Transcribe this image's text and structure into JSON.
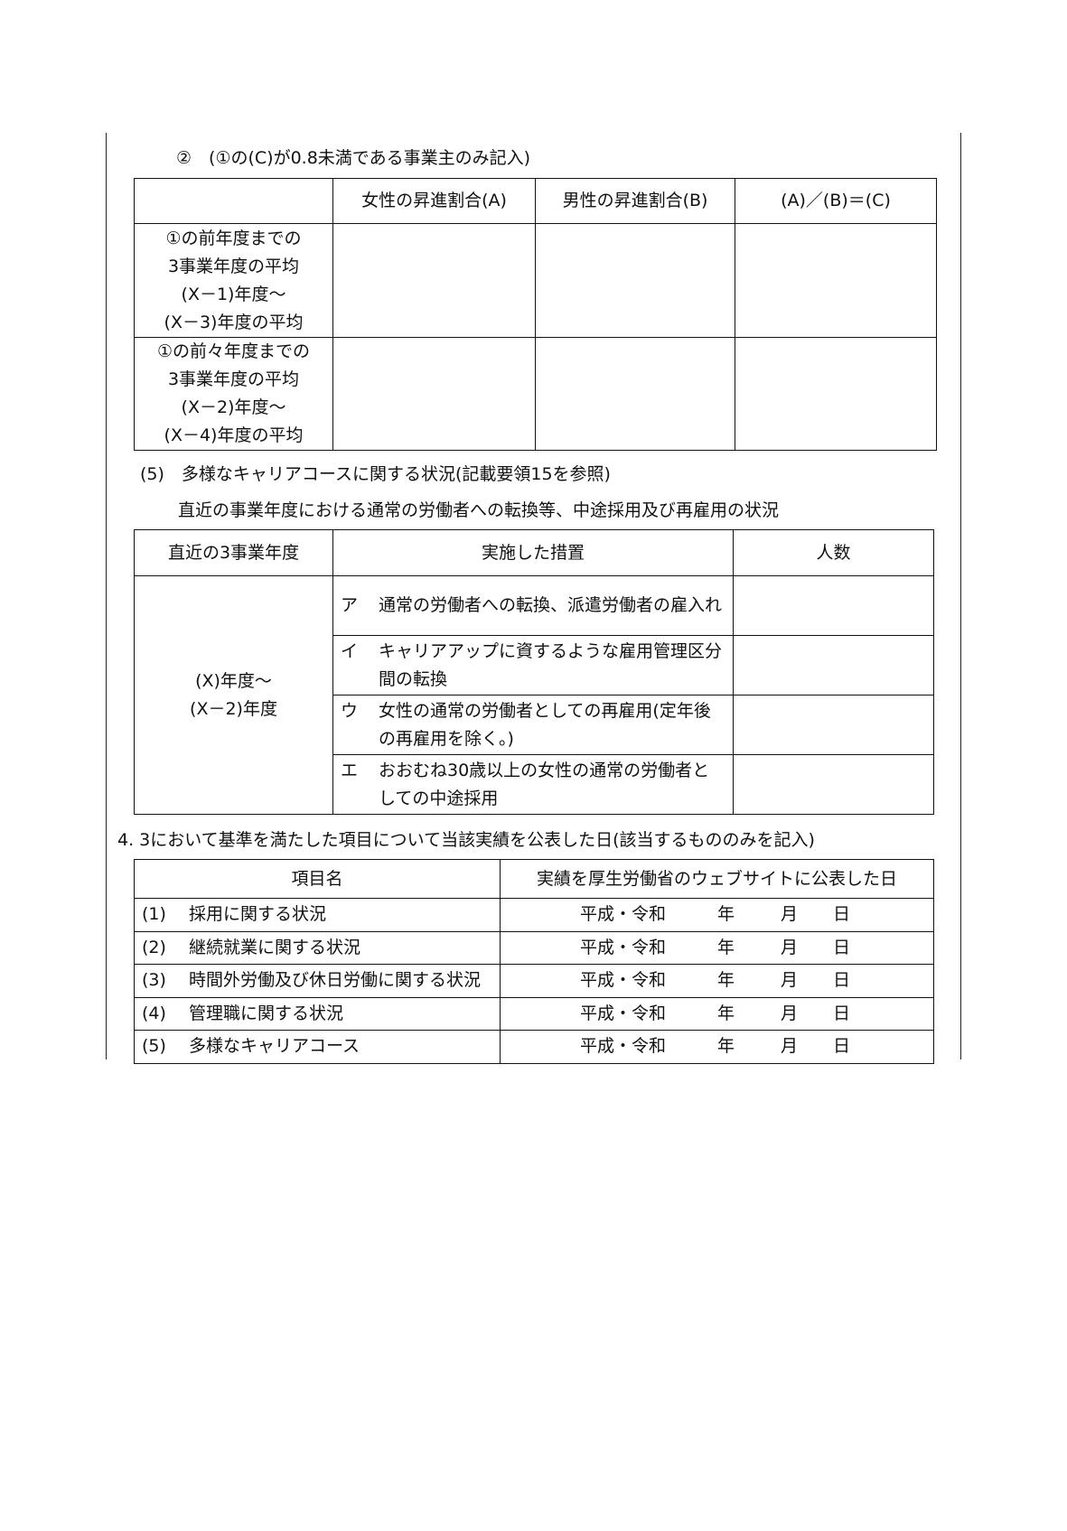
{
  "section_promotion": {
    "heading": "②　(①の(C)が0.8未満である事業主のみ記入)",
    "headers": [
      "",
      "女性の昇進割合(A)",
      "男性の昇進割合(B)",
      "(A)／(B)＝(C)"
    ],
    "rows": [
      {
        "label": [
          "①の前年度までの",
          "3事業年度の平均",
          "(X－1)年度～",
          "(X－3)年度の平均"
        ],
        "values": [
          "",
          "",
          ""
        ]
      },
      {
        "label": [
          "①の前々年度までの",
          "3事業年度の平均",
          "(X－2)年度～",
          "(X－4)年度の平均"
        ],
        "values": [
          "",
          "",
          ""
        ]
      }
    ]
  },
  "section_career": {
    "heading": "(5)　多様なキャリアコースに関する状況(記載要領15を参照)",
    "subheading": "直近の事業年度における通常の労働者への転換等、中途採用及び再雇用の状況",
    "headers": [
      "直近の3事業年度",
      "実施した措置",
      "人数"
    ],
    "period": [
      "(X)年度～",
      "(X－2)年度"
    ],
    "measures": [
      {
        "mark": "ア",
        "text": "通常の労働者への転換、派遣労働者の雇入れ",
        "count": ""
      },
      {
        "mark": "イ",
        "text": "キャリアアップに資するような雇用管理区分間の転換",
        "count": ""
      },
      {
        "mark": "ウ",
        "text": "女性の通常の労働者としての再雇用(定年後の再雇用を除く。)",
        "count": ""
      },
      {
        "mark": "エ",
        "text": "おおむね30歳以上の女性の通常の労働者としての中途採用",
        "count": ""
      }
    ]
  },
  "section_publication": {
    "heading": "4. 3において基準を満たした項目について当該実績を公表した日(該当するもののみを記入)",
    "headers": [
      "項目名",
      "実績を厚生労働省のウェブサイトに公表した日"
    ],
    "date_labels": {
      "era": "平成・令和",
      "year": "年",
      "month": "月",
      "day": "日"
    },
    "rows": [
      {
        "no": "(1)",
        "name": "採用に関する状況"
      },
      {
        "no": "(2)",
        "name": "継続就業に関する状況"
      },
      {
        "no": "(3)",
        "name": "時間外労働及び休日労働に関する状況"
      },
      {
        "no": "(4)",
        "name": "管理職に関する状況"
      },
      {
        "no": "(5)",
        "name": "多様なキャリアコース"
      }
    ]
  }
}
